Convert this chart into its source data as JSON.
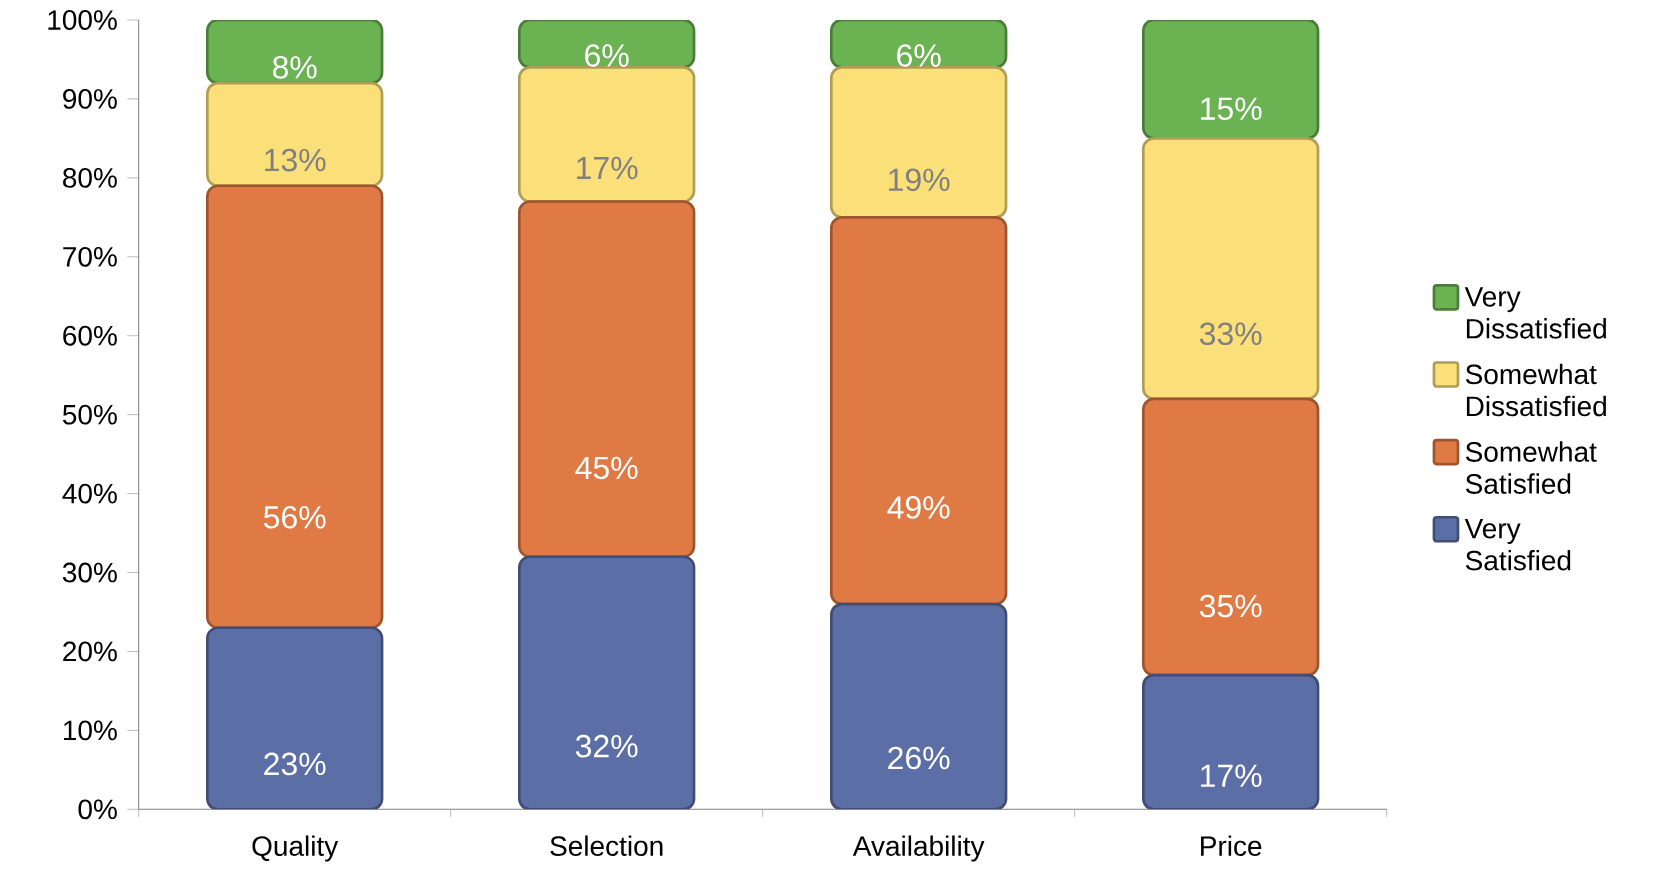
{
  "chart_data": {
    "type": "bar",
    "stacked": true,
    "categories": [
      "Quality",
      "Selection",
      "Availability",
      "Price"
    ],
    "series": [
      {
        "name": "Very Satisfied",
        "color": "#5b6ea6",
        "values": [
          23,
          32,
          26,
          17
        ],
        "value_labels": [
          "23%",
          "32%",
          "26%",
          "17%"
        ]
      },
      {
        "name": "Somewhat Satisfied",
        "color": "#e07a45",
        "values": [
          56,
          45,
          49,
          35
        ],
        "value_labels": [
          "56%",
          "45%",
          "49%",
          "35%"
        ]
      },
      {
        "name": "Somewhat Dissatisfied",
        "color": "#fbe07a",
        "values": [
          13,
          17,
          19,
          33
        ],
        "value_labels": [
          "13%",
          "17%",
          "19%",
          "33%"
        ]
      },
      {
        "name": "Very Dissatisfied",
        "color": "#6bb253",
        "values": [
          8,
          6,
          6,
          15
        ],
        "value_labels": [
          "8%",
          "6%",
          "6%",
          "15%"
        ]
      }
    ],
    "ylim": [
      0,
      100
    ],
    "yticks": [
      {
        "value": 0,
        "label": "0%"
      },
      {
        "value": 10,
        "label": "10%"
      },
      {
        "value": 20,
        "label": "20%"
      },
      {
        "value": 30,
        "label": "30%"
      },
      {
        "value": 40,
        "label": "40%"
      },
      {
        "value": 50,
        "label": "50%"
      },
      {
        "value": 60,
        "label": "60%"
      },
      {
        "value": 70,
        "label": "70%"
      },
      {
        "value": 80,
        "label": "80%"
      },
      {
        "value": 90,
        "label": "90%"
      },
      {
        "value": 100,
        "label": "100%"
      }
    ],
    "grid": false,
    "legend": "right"
  }
}
